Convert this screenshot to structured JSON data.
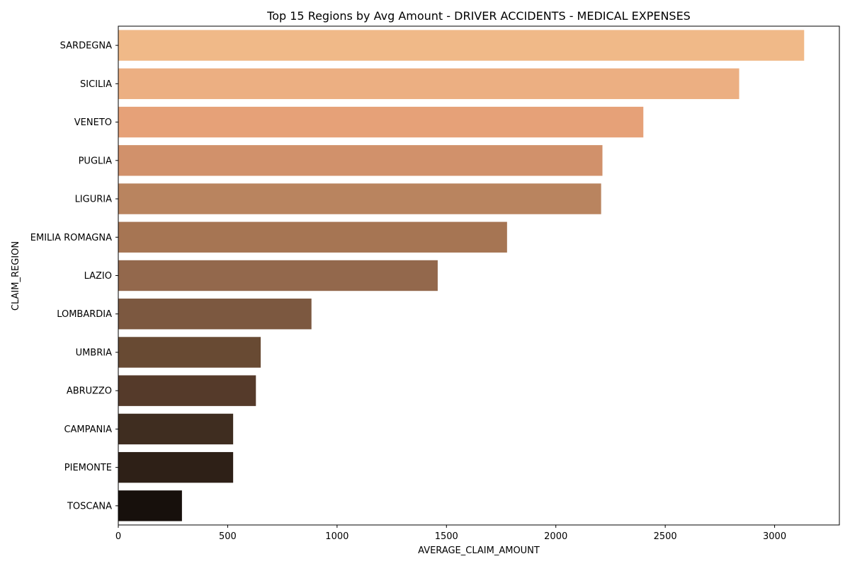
{
  "chart_data": {
    "type": "bar",
    "orientation": "horizontal",
    "title": "Top 15 Regions by Avg Amount - DRIVER ACCIDENTS - MEDICAL EXPENSES",
    "xlabel": "AVERAGE_CLAIM_AMOUNT",
    "ylabel": "CLAIM_REGION",
    "categories": [
      "SARDEGNA",
      "SICILIA",
      "VENETO",
      "PUGLIA",
      "LIGURIA",
      "EMILIA ROMAGNA",
      "LAZIO",
      "LOMBARDIA",
      "UMBRIA",
      "ABRUZZO",
      "CAMPANIA",
      "PIEMONTE",
      "TOSCANA"
    ],
    "values": [
      3135,
      2838,
      2400,
      2213,
      2207,
      1777,
      1460,
      883,
      651,
      629,
      525,
      525,
      291
    ],
    "xlim": [
      0,
      3296
    ],
    "xticks": [
      0,
      500,
      1000,
      1500,
      2000,
      2500,
      3000
    ],
    "colors": [
      "#f0b988",
      "#ecaf82",
      "#e6a178",
      "#d1916b",
      "#b9845f",
      "#a67553",
      "#93684c",
      "#7c5840",
      "#684a33",
      "#553a2a",
      "#3f2d20",
      "#2e2017",
      "#17100c"
    ],
    "grid": false,
    "legend": "none"
  }
}
